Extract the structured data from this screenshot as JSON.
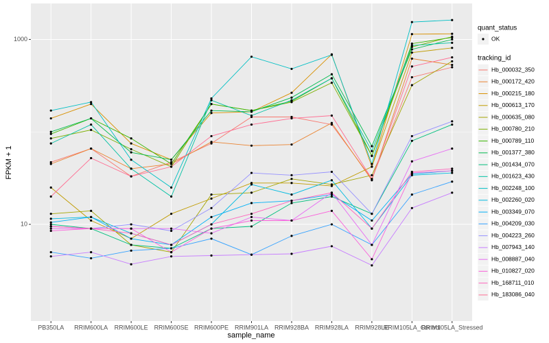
{
  "chart_data": {
    "type": "line",
    "x_label": "sample_name",
    "y_label": "FPKM + 1",
    "log_y": true,
    "grid": true,
    "ylim": [
      0.9,
      2450
    ],
    "yticks": [
      10,
      1000
    ],
    "minor_yticks": [
      100
    ],
    "point_color": "#000000",
    "shape_legend": {
      "title": "quant_status",
      "labels": [
        "OK"
      ]
    },
    "legend_title": "tracking_id",
    "categories": [
      "PB350LA",
      "RRIM600LA",
      "RRIM600LE",
      "RRIM600SE",
      "RRIM600PE",
      "RRIM901LA",
      "RRIM928BA",
      "RRIM928LA",
      "RRIM928LE",
      "RRIM105LA_Control",
      "RRIM105LA_Stressed"
    ],
    "series": [
      {
        "name": "Hb_000032_350",
        "color": "#F8766D",
        "values": [
          47,
          66,
          33,
          47,
          75,
          145,
          145,
          120,
          31,
          390,
          500
        ]
      },
      {
        "name": "Hb_000172_420",
        "color": "#EA8331",
        "values": [
          45,
          66,
          40,
          45,
          78,
          71,
          73,
          125,
          30,
          620,
          530
        ]
      },
      {
        "name": "Hb_000215_180",
        "color": "#D89000",
        "values": [
          140,
          200,
          75,
          50,
          160,
          165,
          265,
          690,
          42,
          1140,
          1150
        ]
      },
      {
        "name": "Hb_000613_170",
        "color": "#C09B00",
        "values": [
          25,
          11,
          7,
          13,
          19,
          28,
          28,
          26,
          42,
          720,
          810
        ]
      },
      {
        "name": "Hb_000635_080",
        "color": "#A3A500",
        "values": [
          13,
          14,
          6,
          5,
          21,
          22,
          31,
          27,
          34,
          320,
          580
        ]
      },
      {
        "name": "Hb_000780_210",
        "color": "#7CAE00",
        "values": [
          85,
          105,
          65,
          42,
          200,
          170,
          210,
          340,
          55,
          830,
          1070
        ]
      },
      {
        "name": "Hb_000789_110",
        "color": "#39B600",
        "values": [
          95,
          140,
          85,
          45,
          200,
          170,
          215,
          380,
          55,
          900,
          1050
        ]
      },
      {
        "name": "Hb_001377_380",
        "color": "#00BB4E",
        "values": [
          100,
          140,
          60,
          50,
          170,
          165,
          235,
          420,
          70,
          780,
          1000
        ]
      },
      {
        "name": "Hb_001434_070",
        "color": "#00BF7D",
        "values": [
          10,
          9,
          6,
          5.5,
          9,
          9.5,
          17,
          20,
          13,
          80,
          120
        ]
      },
      {
        "name": "Hb_001623_430",
        "color": "#00C1A3",
        "values": [
          75,
          120,
          40,
          20,
          220,
          150,
          220,
          380,
          62,
          860,
          920
        ]
      },
      {
        "name": "Hb_002248_100",
        "color": "#00BFC4",
        "values": [
          170,
          210,
          50,
          25,
          230,
          650,
          480,
          680,
          45,
          1540,
          1620
        ]
      },
      {
        "name": "Hb_002260_020",
        "color": "#00BAE0",
        "values": [
          11.5,
          12,
          8,
          6,
          10,
          27,
          21,
          30,
          9,
          34,
          36
        ]
      },
      {
        "name": "Hb_003349_070",
        "color": "#00B0F6",
        "values": [
          10.5,
          12,
          7,
          6,
          12,
          17,
          18,
          21,
          11,
          35,
          38
        ]
      },
      {
        "name": "Hb_004209_030",
        "color": "#35A2FF",
        "values": [
          5,
          4.3,
          5.2,
          5.5,
          7,
          4.7,
          7.5,
          10,
          6,
          21,
          29
        ]
      },
      {
        "name": "Hb_004223_260",
        "color": "#9590FF",
        "values": [
          9.5,
          9,
          10,
          8.5,
          15,
          36,
          34,
          37,
          13,
          90,
          130
        ]
      },
      {
        "name": "Hb_007943_140",
        "color": "#C77CFF",
        "values": [
          4.5,
          5,
          3.7,
          4.5,
          4.6,
          4.7,
          4.8,
          5.8,
          3.6,
          15,
          22
        ]
      },
      {
        "name": "Hb_008887_040",
        "color": "#E76BF3",
        "values": [
          9,
          9,
          9,
          9,
          8,
          12,
          11,
          22,
          6,
          48,
          66
        ]
      },
      {
        "name": "Hb_010827_020",
        "color": "#FA62DB",
        "values": [
          8.5,
          9,
          9,
          5,
          9,
          11,
          11,
          14,
          4.2,
          36,
          38
        ]
      },
      {
        "name": "Hb_168711_010",
        "color": "#FF62BC",
        "values": [
          9.5,
          9,
          8,
          6,
          10,
          13,
          18,
          22,
          9,
          37,
          40
        ]
      },
      {
        "name": "Hb_183086_040",
        "color": "#FF6C91",
        "values": [
          20,
          52,
          33,
          42,
          90,
          120,
          140,
          150,
          31,
          510,
          640
        ]
      }
    ]
  }
}
